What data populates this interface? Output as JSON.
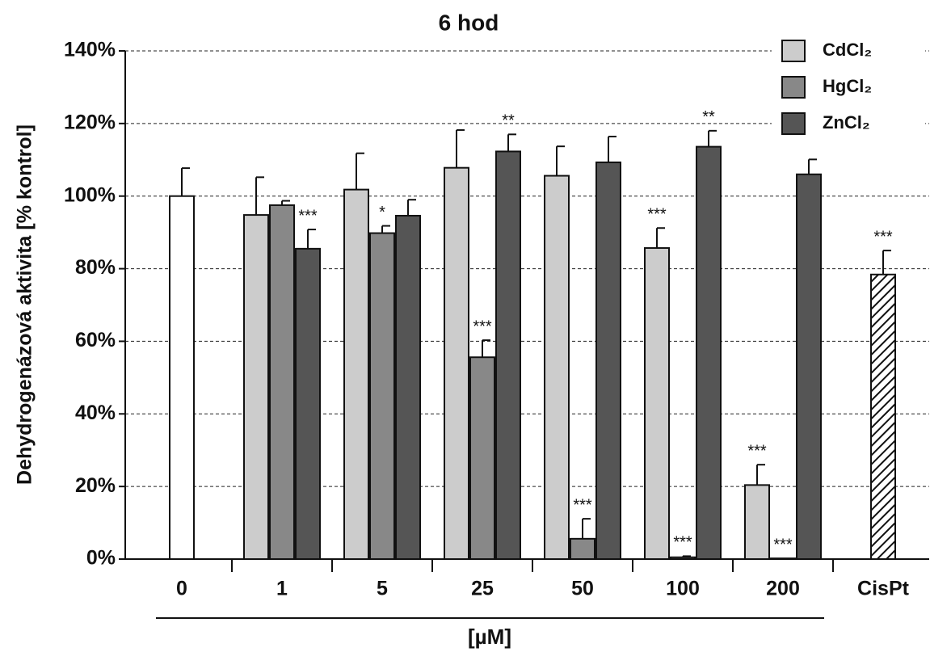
{
  "chart_data": {
    "type": "bar",
    "title": "6 hod",
    "y_label": "Dehydrogenázová aktivita [% kontrol]",
    "x_label": "[µM]",
    "categories": [
      "0",
      "1",
      "5",
      "25",
      "50",
      "100",
      "200",
      "CisPt"
    ],
    "ylim": [
      0,
      140
    ],
    "yticks": [
      {
        "value": 0,
        "label": "0%"
      },
      {
        "value": 20,
        "label": "20%"
      },
      {
        "value": 40,
        "label": "40%"
      },
      {
        "value": 60,
        "label": "60%"
      },
      {
        "value": 80,
        "label": "80%"
      },
      {
        "value": 100,
        "label": "100%"
      },
      {
        "value": 120,
        "label": "120%"
      },
      {
        "value": 140,
        "label": "140%"
      }
    ],
    "grid": true,
    "legend": "top-right",
    "control_bar": {
      "value": 100,
      "error": 7.7,
      "color": "#ffffff"
    },
    "cispt_bar": {
      "value": 78.4,
      "error": 6.6,
      "color": "#ffffff",
      "pattern": "hatch",
      "significance": "***"
    },
    "series": [
      {
        "name": "CdCl₂",
        "color": "#cccccc",
        "values": [
          null,
          94.8,
          101.8,
          107.8,
          105.6,
          85.7,
          20.4,
          null
        ],
        "errors": [
          null,
          10.4,
          10,
          10.4,
          8.1,
          5.5,
          5.6,
          null
        ],
        "significance": [
          null,
          null,
          null,
          null,
          null,
          "***",
          "***",
          null
        ]
      },
      {
        "name": "HgCl₂",
        "color": "#888888",
        "values": [
          null,
          97.5,
          89.8,
          55.6,
          5.6,
          0.5,
          0.2,
          null
        ],
        "errors": [
          null,
          1.2,
          2,
          4.7,
          5.5,
          0.3,
          null,
          null
        ],
        "significance": [
          null,
          null,
          "*",
          "***",
          "***",
          "***",
          "***",
          null
        ]
      },
      {
        "name": "ZnCl₂",
        "color": "#555555",
        "values": [
          null,
          85.5,
          94.6,
          112.3,
          109.3,
          113.6,
          106,
          null
        ],
        "errors": [
          null,
          5.3,
          4.4,
          4.7,
          7.1,
          4.4,
          4.1,
          null
        ],
        "significance": [
          null,
          "***",
          null,
          "**",
          null,
          "**",
          null,
          null
        ]
      }
    ]
  }
}
